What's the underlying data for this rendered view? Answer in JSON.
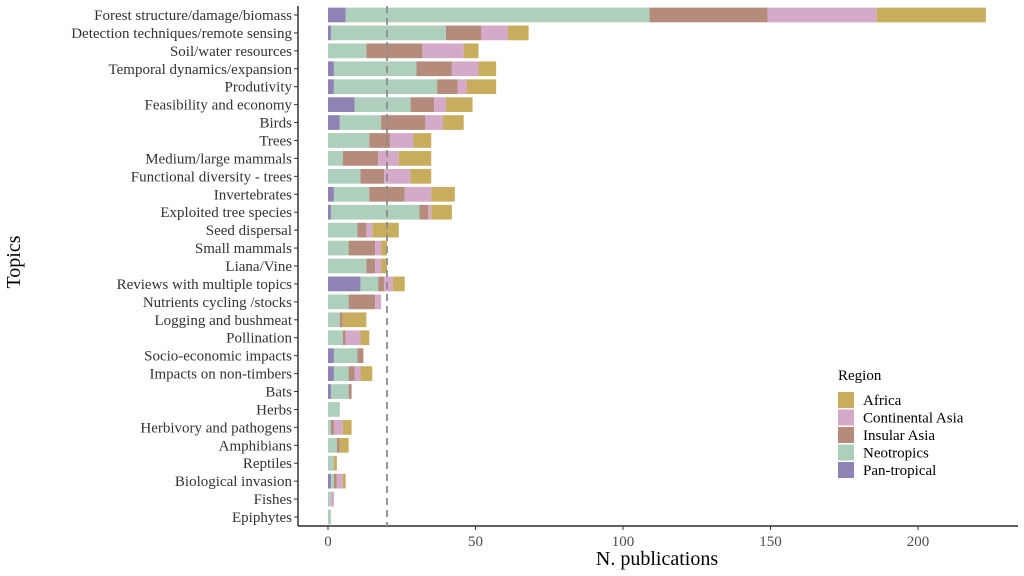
{
  "chart_data": {
    "type": "bar",
    "orientation": "horizontal",
    "stacked": true,
    "xlabel": "N. publications",
    "ylabel": "Topics",
    "xlim": [
      -10,
      235
    ],
    "xticks": [
      0,
      50,
      100,
      150,
      200
    ],
    "reference_line": {
      "x": 20,
      "style": "dashed",
      "color": "#8c8c8c"
    },
    "legend": {
      "title": "Region",
      "position": "bottom-right"
    },
    "categories": [
      "Forest structure/damage/biomass",
      "Detection techniques/remote sensing",
      "Soil/water resources",
      "Temporal dynamics/expansion",
      "Produtivity",
      "Feasibility and economy",
      "Birds",
      "Trees",
      "Medium/large mammals",
      "Functional diversity - trees",
      "Invertebrates",
      "Exploited tree species",
      "Seed dispersal",
      "Small mammals",
      "Liana/Vine",
      "Reviews with multiple topics",
      "Nutrients cycling /stocks",
      "Logging and bushmeat",
      "Pollination",
      "Socio-economic impacts",
      "Impacts on non-timbers",
      "Bats",
      "Herbs",
      "Herbivory and pathogens",
      "Amphibians",
      "Reptiles",
      "Biological invasion",
      "Fishes",
      "Epiphytes"
    ],
    "stack_order": [
      "Pan-tropical",
      "Neotropics",
      "Insular Asia",
      "Continental Asia",
      "Africa"
    ],
    "series": [
      {
        "name": "Africa",
        "color": "#c8ad5f",
        "values": [
          37,
          7,
          5,
          6,
          10,
          9,
          7,
          6,
          11,
          7,
          8,
          7,
          9,
          2,
          2,
          4,
          0,
          8,
          3,
          0,
          4,
          0,
          0,
          3,
          3,
          1,
          1,
          0,
          0
        ]
      },
      {
        "name": "Continental Asia",
        "color": "#d4aac8",
        "values": [
          37,
          9,
          14,
          9,
          3,
          4,
          6,
          8,
          7,
          9,
          9,
          1,
          2,
          2,
          2,
          3,
          2,
          0,
          5,
          0,
          2,
          0,
          0,
          3,
          0,
          0,
          2,
          1,
          0
        ]
      },
      {
        "name": "Insular Asia",
        "color": "#b58b7c",
        "values": [
          40,
          12,
          19,
          12,
          7,
          8,
          15,
          7,
          12,
          8,
          12,
          3,
          3,
          9,
          3,
          2,
          9,
          1,
          1,
          2,
          2,
          1,
          0,
          1,
          1,
          0,
          1,
          0,
          0
        ]
      },
      {
        "name": "Neotropics",
        "color": "#aecfbc",
        "values": [
          103,
          39,
          13,
          28,
          35,
          19,
          14,
          14,
          5,
          11,
          12,
          30,
          10,
          7,
          13,
          6,
          7,
          4,
          5,
          8,
          5,
          6,
          4,
          1,
          3,
          2,
          1,
          1,
          1
        ]
      },
      {
        "name": "Pan-tropical",
        "color": "#8f82b4",
        "values": [
          6,
          1,
          0,
          2,
          2,
          9,
          4,
          0,
          0,
          0,
          2,
          1,
          0,
          0,
          0,
          11,
          0,
          0,
          0,
          2,
          2,
          1,
          0,
          0,
          0,
          0,
          1,
          0,
          0
        ]
      }
    ]
  }
}
